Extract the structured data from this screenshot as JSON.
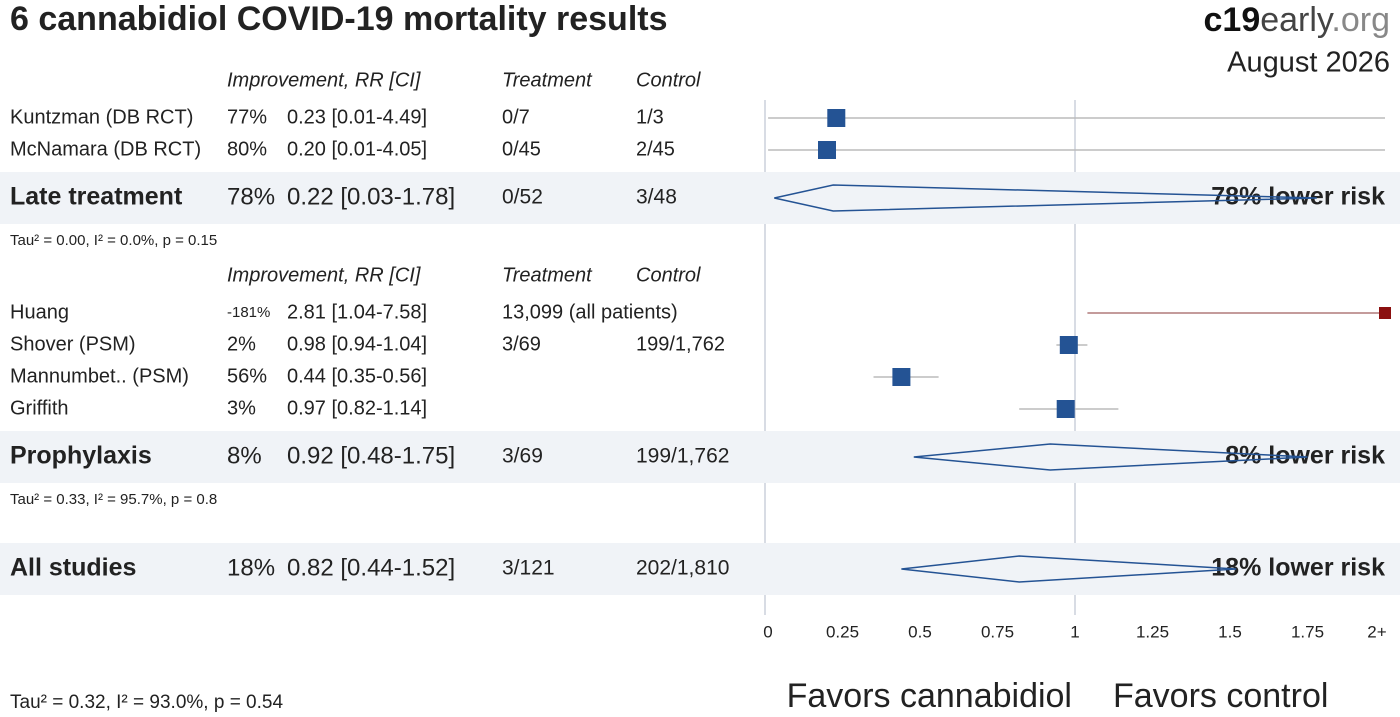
{
  "header": {
    "title": "6 cannabidiol COVID-19 mortality results",
    "brand_bold": "c19",
    "brand_mid": "early",
    "brand_end": ".org",
    "date": "August 2026"
  },
  "chart_data": {
    "type": "forest",
    "columns": [
      "Improvement, RR [CI]",
      "Treatment",
      "Control"
    ],
    "xlim": [
      0,
      2
    ],
    "xticks": [
      0,
      0.25,
      0.5,
      0.75,
      1,
      1.25,
      1.5,
      1.75,
      {
        "value": 2,
        "label": "2+"
      }
    ],
    "groups": [
      {
        "name": "Late treatment",
        "improvement": "78%",
        "rr": 0.22,
        "ci_low": 0.03,
        "ci_high": 1.78,
        "ci_label": "0.22 [0.03-1.78]",
        "treatment": "0/52",
        "control": "3/48",
        "risk_label": "78% lower risk",
        "stats": "Tau² = 0.00, I² = 0.0%, p = 0.15",
        "studies": [
          {
            "name": "Kuntzman (DB RCT)",
            "improvement": "77%",
            "rr": 0.23,
            "ci_low": 0.01,
            "ci_high": 4.49,
            "ci_label": "0.23 [0.01-4.49]",
            "treatment": "0/7",
            "control": "1/3",
            "color": "#245394"
          },
          {
            "name": "McNamara (DB RCT)",
            "improvement": "80%",
            "rr": 0.2,
            "ci_low": 0.01,
            "ci_high": 4.05,
            "ci_label": "0.20 [0.01-4.05]",
            "treatment": "0/45",
            "control": "2/45",
            "color": "#245394"
          }
        ]
      },
      {
        "name": "Prophylaxis",
        "improvement": "8%",
        "rr": 0.92,
        "ci_low": 0.48,
        "ci_high": 1.75,
        "ci_label": "0.92 [0.48-1.75]",
        "treatment": "3/69",
        "control": "199/1,762",
        "risk_label": "8% lower risk",
        "stats": "Tau² = 0.33, I² = 95.7%, p = 0.8",
        "studies": [
          {
            "name": "Huang",
            "improvement": "-181%",
            "rr": 2.81,
            "ci_low": 1.04,
            "ci_high": 7.58,
            "ci_label": "2.81 [1.04-7.58]",
            "treatment": "13,099 (all patients)",
            "color": "#8b1010"
          },
          {
            "name": "Shover (PSM)",
            "improvement": "2%",
            "rr": 0.98,
            "ci_low": 0.94,
            "ci_high": 1.04,
            "ci_label": "0.98 [0.94-1.04]",
            "treatment": "3/69",
            "control": "199/1,762",
            "color": "#245394"
          },
          {
            "name": "Mannumbet.. (PSM)",
            "improvement": "56%",
            "rr": 0.44,
            "ci_low": 0.35,
            "ci_high": 0.56,
            "ci_label": "0.44 [0.35-0.56]",
            "color": "#245394"
          },
          {
            "name": "Griffith",
            "improvement": "3%",
            "rr": 0.97,
            "ci_low": 0.82,
            "ci_high": 1.14,
            "ci_label": "0.97 [0.82-1.14]",
            "color": "#245394"
          }
        ]
      }
    ],
    "overall": {
      "name": "All studies",
      "improvement": "18%",
      "rr": 0.82,
      "ci_low": 0.44,
      "ci_high": 1.52,
      "ci_label": "0.82 [0.44-1.52]",
      "treatment": "3/121",
      "control": "202/1,810",
      "risk_label": "18% lower risk",
      "stats": "Tau² = 0.32, I² = 93.0%, p = 0.54"
    },
    "favors_left": "Favors cannabidiol",
    "favors_right": "Favors control"
  }
}
